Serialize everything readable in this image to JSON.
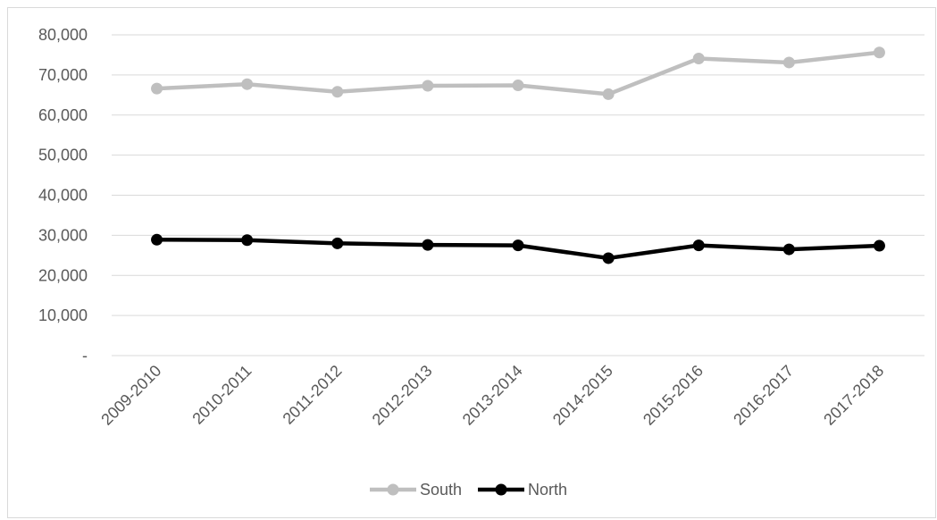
{
  "chart_data": {
    "type": "line",
    "categories": [
      "2009-2010",
      "2010-2011",
      "2011-2012",
      "2012-2013",
      "2013-2014",
      "2014-2015",
      "2015-2016",
      "2016-2017",
      "2017-2018"
    ],
    "series": [
      {
        "name": "South",
        "color": "#bfbfbf",
        "values": [
          66600,
          67700,
          65800,
          67300,
          67400,
          65200,
          74100,
          73100,
          75600
        ]
      },
      {
        "name": "North",
        "color": "#000000",
        "values": [
          28900,
          28800,
          28000,
          27600,
          27500,
          24300,
          27500,
          26500,
          27400
        ]
      }
    ],
    "y_ticks": [
      "-",
      "10,000",
      "20,000",
      "30,000",
      "40,000",
      "50,000",
      "60,000",
      "70,000",
      "80,000"
    ],
    "ylim": [
      0,
      80000
    ],
    "grid": true,
    "legend": "bottom",
    "title": "",
    "xlabel": "",
    "ylabel": ""
  }
}
